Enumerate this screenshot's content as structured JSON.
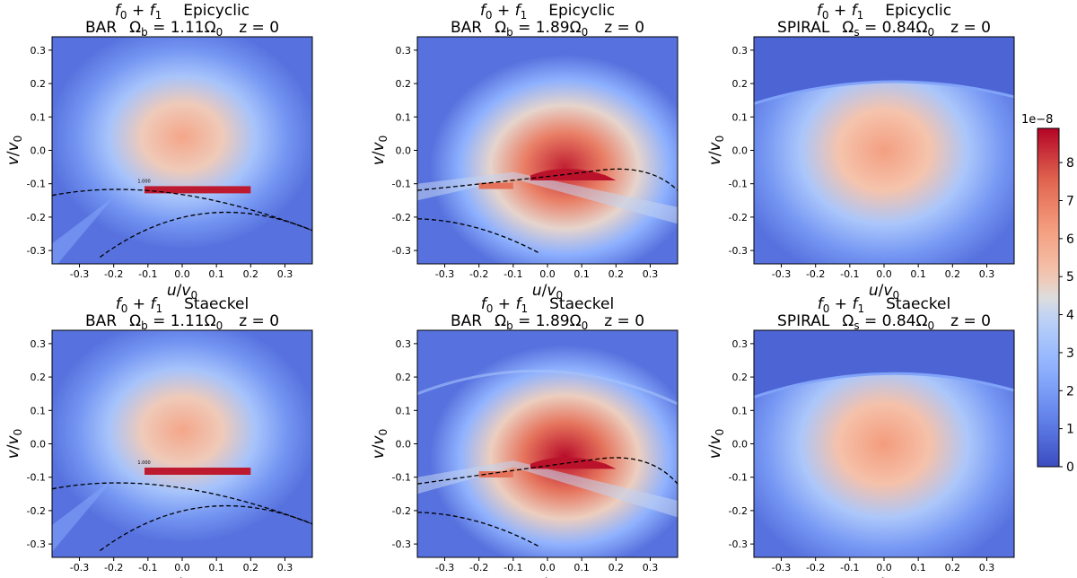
{
  "figure": {
    "type": "heatmap_grid",
    "rows": 2,
    "cols": 3
  },
  "chart_data": [
    {
      "type": "heatmap",
      "title_line1_expr": "f0 + f1",
      "title_line1_expr_parts": [
        "f",
        "0",
        " + ",
        "f",
        "1"
      ],
      "title_line1_method": "Epicyclic",
      "title_line2": "BAR   Ωb = 1.11Ω0   z = 0",
      "title_line2_parts": {
        "model": "BAR",
        "omega": "Ω",
        "omega_sub": "b",
        "eq": " = 1.11Ω",
        "eq_sub": "0",
        "z": "z = 0"
      },
      "xlabel": "u/v0",
      "ylabel": "v/v0",
      "xlim": [
        -0.38,
        0.38
      ],
      "ylim": [
        -0.34,
        0.34
      ],
      "xticks": [
        -0.3,
        -0.2,
        -0.1,
        0.0,
        0.1,
        0.2,
        0.3
      ],
      "yticks": [
        -0.3,
        -0.2,
        -0.1,
        0.0,
        0.1,
        0.2,
        0.3
      ],
      "peak": {
        "u": 0.0,
        "v": 0.04,
        "value": 6.0
      },
      "features": {
        "resonance": "bar-olr-1.11",
        "contour_label": "1.000"
      }
    },
    {
      "type": "heatmap",
      "title_line1_expr": "f0 + f1",
      "title_line1_expr_parts": [
        "f",
        "0",
        " + ",
        "f",
        "1"
      ],
      "title_line1_method": "Epicyclic",
      "title_line2": "BAR   Ωb = 1.89Ω0   z = 0",
      "title_line2_parts": {
        "model": "BAR",
        "omega": "Ω",
        "omega_sub": "b",
        "eq": " = 1.89Ω",
        "eq_sub": "0",
        "z": "z = 0"
      },
      "xlabel": "u/v0",
      "ylabel": "v/v0",
      "xlim": [
        -0.38,
        0.38
      ],
      "ylim": [
        -0.34,
        0.34
      ],
      "xticks": [
        -0.3,
        -0.2,
        -0.1,
        0.0,
        0.1,
        0.2,
        0.3
      ],
      "yticks": [
        -0.3,
        -0.2,
        -0.1,
        0.0,
        0.1,
        0.2,
        0.3
      ],
      "peak": {
        "u": 0.05,
        "v": -0.05,
        "value": 8.5
      },
      "features": {
        "resonance": "bar-olr-1.89"
      }
    },
    {
      "type": "heatmap",
      "title_line1_expr": "f0 + f1",
      "title_line1_expr_parts": [
        "f",
        "0",
        " + ",
        "f",
        "1"
      ],
      "title_line1_method": "Epicyclic",
      "title_line2": "SPIRAL   Ωs = 0.84Ω0   z = 0",
      "title_line2_parts": {
        "model": "SPIRAL",
        "omega": "Ω",
        "omega_sub": "s",
        "eq": " = 0.84Ω",
        "eq_sub": "0",
        "z": "z = 0"
      },
      "xlabel": "u/v0",
      "ylabel": "v/v0",
      "xlim": [
        -0.38,
        0.38
      ],
      "ylim": [
        -0.34,
        0.34
      ],
      "xticks": [
        -0.3,
        -0.2,
        -0.1,
        0.0,
        0.1,
        0.2,
        0.3
      ],
      "yticks": [
        -0.3,
        -0.2,
        -0.1,
        0.0,
        0.1,
        0.2,
        0.3
      ],
      "peak": {
        "u": 0.0,
        "v": 0.0,
        "value": 6.2
      },
      "features": {
        "resonance": "spiral-0.84"
      }
    },
    {
      "type": "heatmap",
      "title_line1_expr": "f0 + f1",
      "title_line1_expr_parts": [
        "f",
        "0",
        " + ",
        "f",
        "1"
      ],
      "title_line1_method": "Staeckel",
      "title_line2": "BAR   Ωb = 1.11Ω0   z = 0",
      "title_line2_parts": {
        "model": "BAR",
        "omega": "Ω",
        "omega_sub": "b",
        "eq": " = 1.11Ω",
        "eq_sub": "0",
        "z": "z = 0"
      },
      "xlabel": "u/v0",
      "ylabel": "v/v0",
      "xlim": [
        -0.38,
        0.38
      ],
      "ylim": [
        -0.34,
        0.34
      ],
      "xticks": [
        -0.3,
        -0.2,
        -0.1,
        0.0,
        0.1,
        0.2,
        0.3
      ],
      "yticks": [
        -0.3,
        -0.2,
        -0.1,
        0.0,
        0.1,
        0.2,
        0.3
      ],
      "peak": {
        "u": 0.0,
        "v": 0.04,
        "value": 6.0
      },
      "features": {
        "resonance": "bar-olr-1.11",
        "contour_label": "1.000"
      }
    },
    {
      "type": "heatmap",
      "title_line1_expr": "f0 + f1",
      "title_line1_expr_parts": [
        "f",
        "0",
        " + ",
        "f",
        "1"
      ],
      "title_line1_method": "Staeckel",
      "title_line2": "BAR   Ωb = 1.89Ω0   z = 0",
      "title_line2_parts": {
        "model": "BAR",
        "omega": "Ω",
        "omega_sub": "b",
        "eq": " = 1.89Ω",
        "eq_sub": "0",
        "z": "z = 0"
      },
      "xlabel": "u/v0",
      "ylabel": "v/v0",
      "xlim": [
        -0.38,
        0.38
      ],
      "ylim": [
        -0.34,
        0.34
      ],
      "xticks": [
        -0.3,
        -0.2,
        -0.1,
        0.0,
        0.1,
        0.2,
        0.3
      ],
      "yticks": [
        -0.3,
        -0.2,
        -0.1,
        0.0,
        0.1,
        0.2,
        0.3
      ],
      "peak": {
        "u": 0.05,
        "v": -0.04,
        "value": 8.8
      },
      "features": {
        "resonance": "bar-olr-1.89"
      }
    },
    {
      "type": "heatmap",
      "title_line1_expr": "f0 + f1",
      "title_line1_expr_parts": [
        "f",
        "0",
        " + ",
        "f",
        "1"
      ],
      "title_line1_method": "Staeckel",
      "title_line2": "SPIRAL   Ωs = 0.84Ω0   z = 0",
      "title_line2_parts": {
        "model": "SPIRAL",
        "omega": "Ω",
        "omega_sub": "s",
        "eq": " = 0.84Ω",
        "eq_sub": "0",
        "z": "z = 0"
      },
      "xlabel": "u/v0",
      "ylabel": "v/v0",
      "xlim": [
        -0.38,
        0.38
      ],
      "ylim": [
        -0.34,
        0.34
      ],
      "xticks": [
        -0.3,
        -0.2,
        -0.1,
        0.0,
        0.1,
        0.2,
        0.3
      ],
      "yticks": [
        -0.3,
        -0.2,
        -0.1,
        0.0,
        0.1,
        0.2,
        0.3
      ],
      "peak": {
        "u": 0.0,
        "v": 0.0,
        "value": 6.3
      },
      "features": {
        "resonance": "spiral-0.84"
      }
    }
  ],
  "colorbar": {
    "colormap": "coolwarm",
    "min": 0,
    "max": 8.9,
    "ticks": [
      0,
      1,
      2,
      3,
      4,
      5,
      6,
      7,
      8
    ],
    "offset_label": "1e−8",
    "colors": [
      "#3b4cc0",
      "#6788ee",
      "#9abbff",
      "#c9d7f0",
      "#edd1c2",
      "#f7a889",
      "#e26952",
      "#b40426"
    ]
  },
  "contour_label_text": "1.000"
}
